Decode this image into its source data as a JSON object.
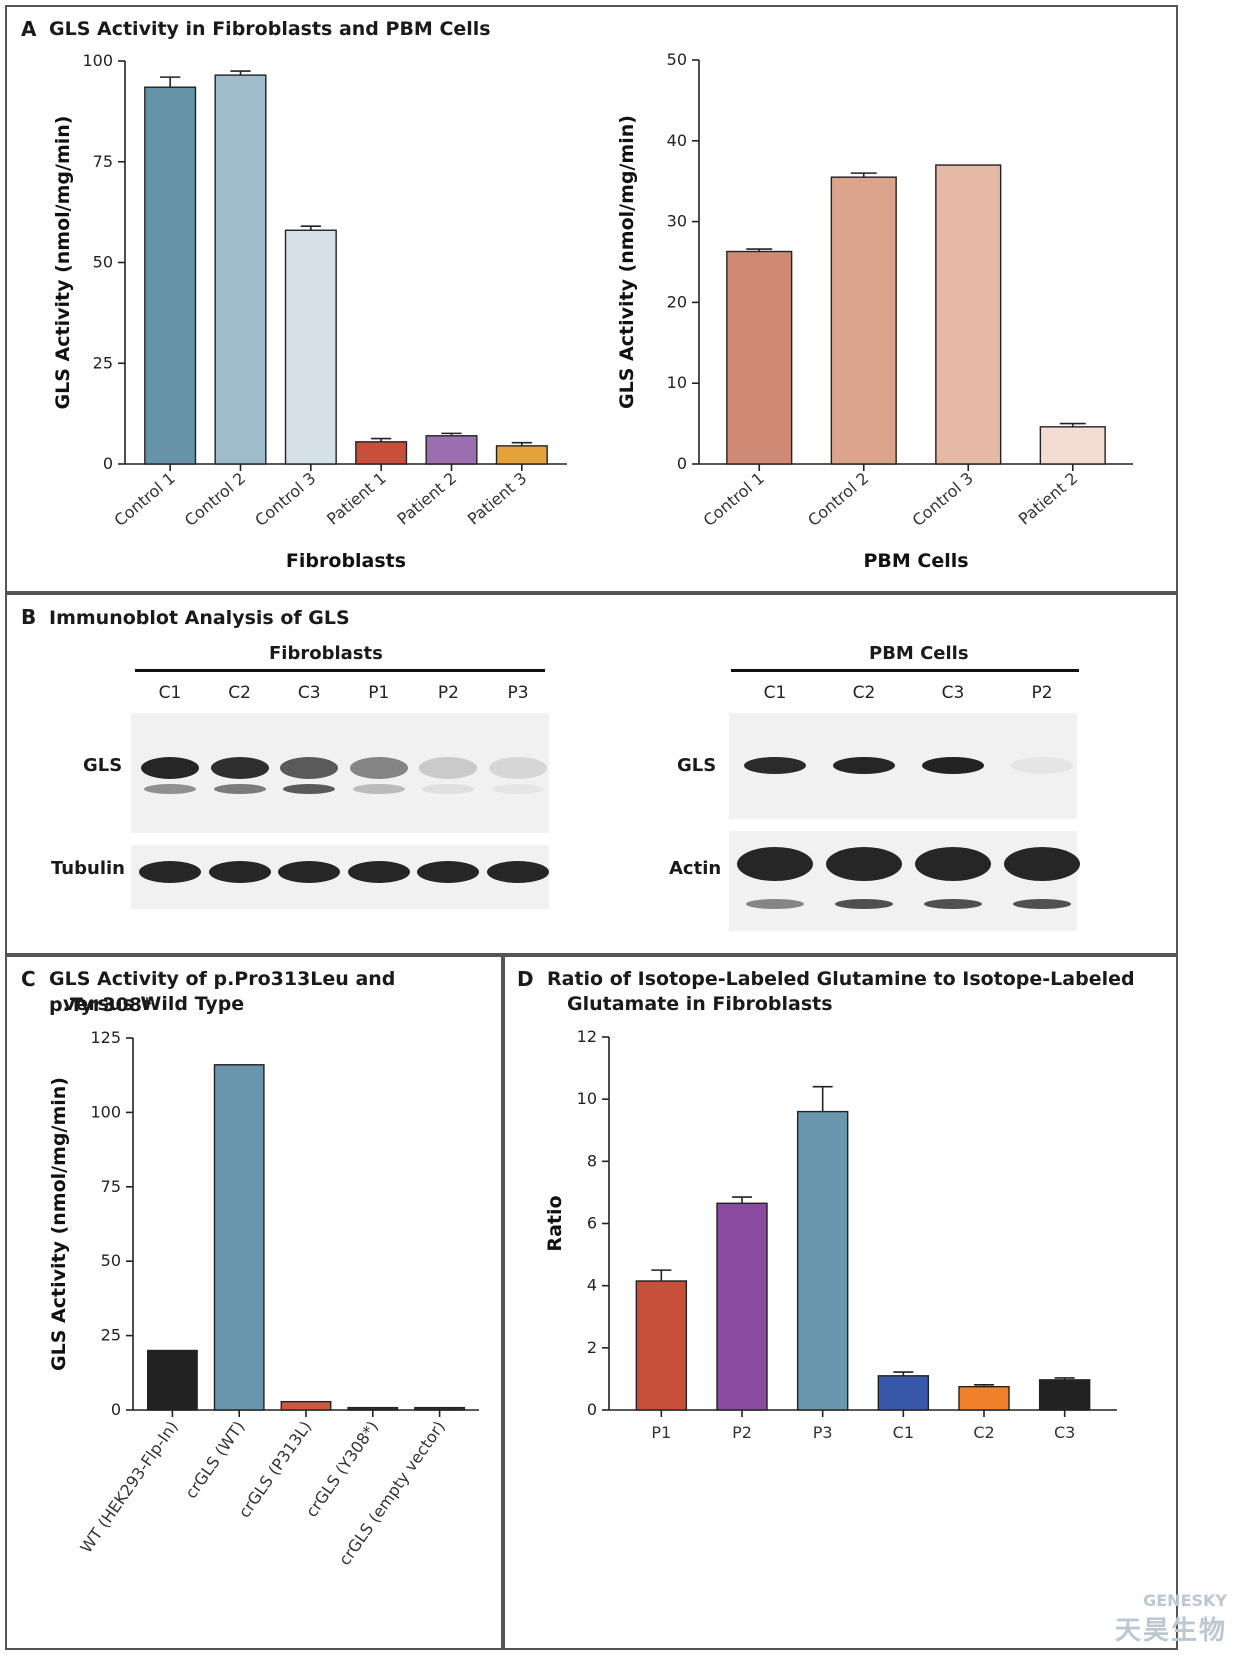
{
  "panelA": {
    "letter": "A",
    "title": "GLS Activity in Fibroblasts and PBM Cells",
    "charts": [
      {
        "type": "bar",
        "ylabel": "GLS Activity (nmol/mg/min)",
        "xlabel": "Fibroblasts",
        "ylim": [
          0,
          100
        ],
        "yticks": [
          0,
          25,
          50,
          75,
          100
        ],
        "categories": [
          "Control 1",
          "Control 2",
          "Control 3",
          "Patient 1",
          "Patient 2",
          "Patient 3"
        ],
        "values": [
          93.5,
          96.5,
          58,
          5.5,
          7,
          4.5
        ],
        "errors": [
          2.5,
          1,
          1,
          0.8,
          0.6,
          0.8
        ],
        "colors": [
          "#6693a8",
          "#9fbccb",
          "#d5e1e7",
          "#c8503a",
          "#9c70b0",
          "#e6a23c"
        ]
      },
      {
        "type": "bar",
        "ylabel": "GLS Activity (nmol/mg/min)",
        "xlabel": "PBM Cells",
        "ylim": [
          0,
          50
        ],
        "yticks": [
          0,
          10,
          20,
          30,
          40,
          50
        ],
        "categories": [
          "Control 1",
          "Control 2",
          "Control 3",
          "Patient 2"
        ],
        "values": [
          26.3,
          35.5,
          37,
          4.6
        ],
        "errors": [
          0.3,
          0.5,
          0,
          0.4
        ],
        "colors": [
          "#ce8a74",
          "#dca38d",
          "#e5b9a6",
          "#f3dcd1"
        ]
      }
    ]
  },
  "panelB": {
    "letter": "B",
    "title": "Immunoblot Analysis of GLS",
    "fibro_header": "Fibroblasts",
    "pbm_header": "PBM Cells",
    "fibro_lanes": [
      "C1",
      "C2",
      "C3",
      "P1",
      "P2",
      "P3"
    ],
    "pbm_lanes": [
      "C1",
      "C2",
      "C3",
      "P2"
    ],
    "gls_label": "GLS",
    "tubulin_label": "Tubulin",
    "gls_label_pbm": "GLS",
    "actin_label": "Actin"
  },
  "panelC": {
    "letter": "C",
    "title_line1": "GLS Activity of p.Pro313Leu and p.Tyr308*",
    "title_line2": "versus Wild Type",
    "chart": {
      "type": "bar",
      "ylabel": "GLS Activity (nmol/mg/min)",
      "xlabel": "",
      "ylim": [
        0,
        125
      ],
      "yticks": [
        0,
        25,
        50,
        75,
        100,
        125
      ],
      "categories": [
        "WT (HEK293-Flp-In)",
        "crGLS (WT)",
        "crGLS (P313L)",
        "crGLS (Y308*)",
        "crGLS (empty vector)"
      ],
      "values": [
        20,
        116,
        2.8,
        0.8,
        0.8
      ],
      "errors": [
        0,
        0,
        0,
        0,
        0
      ],
      "colors": [
        "#222222",
        "#6a97ad",
        "#cc5a40",
        "#333333",
        "#333333"
      ]
    }
  },
  "panelD": {
    "letter": "D",
    "title_line1": "Ratio of Isotope-Labeled Glutamine to Isotope-Labeled",
    "title_line2": "Glutamate in Fibroblasts",
    "chart": {
      "type": "bar",
      "ylabel": "Ratio",
      "xlabel": "",
      "ylim": [
        0,
        12
      ],
      "yticks": [
        0,
        2,
        4,
        6,
        8,
        10,
        12
      ],
      "categories": [
        "P1",
        "P2",
        "P3",
        "C1",
        "C2",
        "C3"
      ],
      "values": [
        4.15,
        6.65,
        9.6,
        1.1,
        0.75,
        0.97
      ],
      "errors": [
        0.35,
        0.2,
        0.8,
        0.12,
        0.06,
        0.06
      ],
      "colors": [
        "#c8503a",
        "#8a4aa0",
        "#6a97ad",
        "#3a58aa",
        "#f0812a",
        "#222222"
      ]
    }
  },
  "watermark": {
    "latin": "GENESKY",
    "chinese": "天昊生物"
  }
}
